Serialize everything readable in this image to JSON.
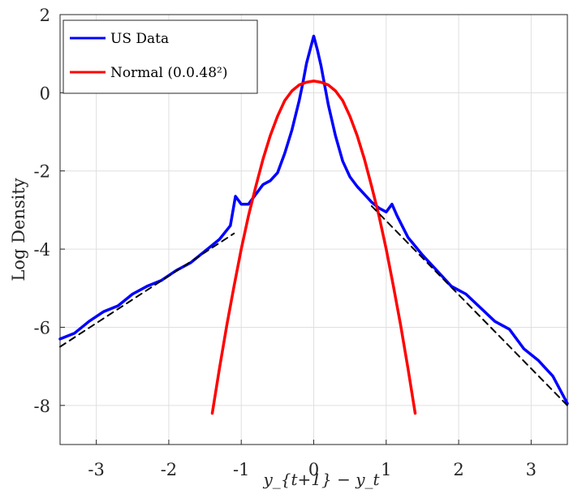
{
  "chart_data": {
    "type": "line",
    "title": "",
    "xlabel": "y_{t+1} − y_t",
    "ylabel": "Log Density",
    "xlim": [
      -3.5,
      3.5
    ],
    "ylim": [
      -9,
      2
    ],
    "xticks": [
      -3,
      -2,
      -1,
      0,
      1,
      2,
      3
    ],
    "xtick_labels": [
      "-3",
      "-2",
      "-1",
      "0",
      "1",
      "2",
      "3"
    ],
    "yticks": [
      2,
      0,
      -2,
      -4,
      -6,
      -8
    ],
    "ytick_labels": [
      "2",
      "0",
      "-2",
      "-4",
      "-6",
      "-8"
    ],
    "grid": true,
    "legend_placement": "top-left",
    "series": [
      {
        "name": "US Data",
        "color": "#0000ff",
        "style": "solid",
        "x": [
          -3.5,
          -3.3,
          -3.1,
          -2.9,
          -2.7,
          -2.5,
          -2.3,
          -2.1,
          -1.9,
          -1.7,
          -1.5,
          -1.3,
          -1.15,
          -1.08,
          -1.0,
          -0.9,
          -0.8,
          -0.7,
          -0.6,
          -0.5,
          -0.4,
          -0.3,
          -0.2,
          -0.15,
          -0.1,
          -0.05,
          0.0,
          0.05,
          0.1,
          0.15,
          0.2,
          0.3,
          0.4,
          0.5,
          0.6,
          0.7,
          0.8,
          0.9,
          1.0,
          1.08,
          1.15,
          1.3,
          1.5,
          1.7,
          1.9,
          2.1,
          2.3,
          2.5,
          2.7,
          2.9,
          3.1,
          3.3,
          3.5
        ],
        "y": [
          -6.3,
          -6.15,
          -5.85,
          -5.6,
          -5.45,
          -5.15,
          -4.95,
          -4.8,
          -4.55,
          -4.35,
          -4.05,
          -3.75,
          -3.4,
          -2.65,
          -2.85,
          -2.85,
          -2.6,
          -2.35,
          -2.25,
          -2.05,
          -1.55,
          -0.95,
          -0.2,
          0.25,
          0.75,
          1.1,
          1.45,
          1.1,
          0.7,
          0.2,
          -0.3,
          -1.1,
          -1.75,
          -2.15,
          -2.4,
          -2.6,
          -2.8,
          -2.95,
          -3.05,
          -2.85,
          -3.15,
          -3.7,
          -4.15,
          -4.55,
          -4.95,
          -5.15,
          -5.5,
          -5.85,
          -6.05,
          -6.55,
          -6.85,
          -7.25,
          -7.95
        ]
      },
      {
        "name": "Normal (0.0.48²)",
        "color": "#ff0000",
        "style": "solid",
        "x": [
          -1.4,
          -1.3,
          -1.2,
          -1.1,
          -1.0,
          -0.9,
          -0.8,
          -0.7,
          -0.6,
          -0.5,
          -0.4,
          -0.3,
          -0.2,
          -0.1,
          0.0,
          0.1,
          0.2,
          0.3,
          0.4,
          0.5,
          0.6,
          0.7,
          0.8,
          0.9,
          1.0,
          1.1,
          1.2,
          1.3,
          1.4
        ],
        "y": [
          -8.2,
          -7.05,
          -5.95,
          -4.95,
          -4.0,
          -3.15,
          -2.4,
          -1.7,
          -1.1,
          -0.6,
          -0.2,
          0.05,
          0.2,
          0.27,
          0.3,
          0.27,
          0.2,
          0.05,
          -0.2,
          -0.6,
          -1.1,
          -1.7,
          -2.4,
          -3.15,
          -4.0,
          -4.95,
          -5.95,
          -7.05,
          -8.2
        ]
      },
      {
        "name": "",
        "color": "#000000",
        "style": "dashed",
        "x": [
          -3.5,
          -1.1
        ],
        "y": [
          -6.5,
          -3.6
        ]
      },
      {
        "name": "",
        "color": "#000000",
        "style": "dashed",
        "x": [
          0.8,
          3.5
        ],
        "y": [
          -2.9,
          -8.0
        ]
      }
    ]
  }
}
